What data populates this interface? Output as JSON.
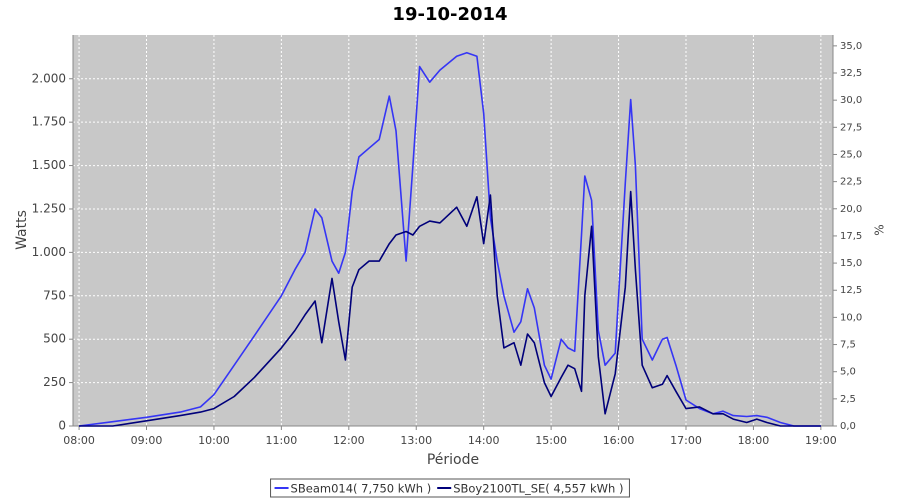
{
  "chart_data": {
    "type": "line",
    "title": "19-10-2014",
    "x_label": "Période",
    "y_label": "Watts",
    "y2_label": "%",
    "x": [
      8.0,
      8.5,
      9.0,
      9.5,
      9.8,
      10.0,
      10.3,
      10.6,
      11.0,
      11.2,
      11.35,
      11.5,
      11.6,
      11.75,
      11.85,
      11.95,
      12.05,
      12.15,
      12.3,
      12.45,
      12.6,
      12.7,
      12.85,
      12.95,
      13.05,
      13.2,
      13.35,
      13.6,
      13.75,
      13.9,
      14.0,
      14.1,
      14.2,
      14.3,
      14.45,
      14.55,
      14.65,
      14.75,
      14.9,
      15.0,
      15.15,
      15.25,
      15.35,
      15.45,
      15.5,
      15.6,
      15.7,
      15.8,
      15.95,
      16.1,
      16.18,
      16.25,
      16.35,
      16.5,
      16.65,
      16.72,
      16.85,
      17.0,
      17.2,
      17.4,
      17.55,
      17.7,
      17.9,
      18.05,
      18.2,
      18.4,
      18.6,
      19.0
    ],
    "series": [
      {
        "name": "SBeam014( 7,750 kWh )",
        "color": "#3535f5",
        "values": [
          0,
          25,
          50,
          80,
          110,
          180,
          350,
          520,
          750,
          900,
          1000,
          1250,
          1200,
          950,
          880,
          1000,
          1350,
          1550,
          1600,
          1650,
          1900,
          1700,
          950,
          1500,
          2070,
          1980,
          2050,
          2130,
          2150,
          2130,
          1800,
          1200,
          950,
          750,
          540,
          600,
          790,
          680,
          350,
          270,
          500,
          450,
          430,
          1100,
          1440,
          1300,
          550,
          350,
          420,
          1400,
          1880,
          1500,
          500,
          380,
          500,
          510,
          350,
          150,
          100,
          70,
          85,
          60,
          55,
          60,
          50,
          20,
          0,
          0
        ]
      },
      {
        "name": "SBoy2100TL_SE( 4,557 kWh )",
        "color": "#00007a",
        "values": [
          0,
          0,
          30,
          60,
          80,
          100,
          170,
          280,
          450,
          550,
          640,
          720,
          480,
          850,
          600,
          380,
          800,
          900,
          950,
          950,
          1050,
          1100,
          1120,
          1100,
          1150,
          1180,
          1170,
          1260,
          1150,
          1320,
          1050,
          1330,
          750,
          450,
          480,
          350,
          530,
          480,
          250,
          170,
          280,
          350,
          330,
          200,
          750,
          1150,
          400,
          70,
          300,
          800,
          1350,
          900,
          350,
          220,
          240,
          290,
          200,
          100,
          110,
          70,
          70,
          40,
          20,
          40,
          20,
          0,
          0,
          0
        ]
      }
    ],
    "xlim": [
      7.91,
      19.18
    ],
    "xticks": [
      {
        "value": 8,
        "label": "08:00"
      },
      {
        "value": 9,
        "label": "09:00"
      },
      {
        "value": 10,
        "label": "10:00"
      },
      {
        "value": 11,
        "label": "11:00"
      },
      {
        "value": 12,
        "label": "12:00"
      },
      {
        "value": 13,
        "label": "13:00"
      },
      {
        "value": 14,
        "label": "14:00"
      },
      {
        "value": 15,
        "label": "15:00"
      },
      {
        "value": 16,
        "label": "16:00"
      },
      {
        "value": 17,
        "label": "17:00"
      },
      {
        "value": 18,
        "label": "18:00"
      },
      {
        "value": 19,
        "label": "19:00"
      }
    ],
    "ylim": [
      0,
      2252
    ],
    "yticks": [
      0,
      250,
      500,
      750,
      {
        "value": 1000,
        "label": "1.000"
      },
      {
        "value": 1250,
        "label": "1.250"
      },
      {
        "value": 1500,
        "label": "1.500"
      },
      {
        "value": 1750,
        "label": "1.750"
      },
      {
        "value": 2000,
        "label": "2.000"
      }
    ],
    "y2lim": [
      0,
      36
    ],
    "y2ticks": [
      {
        "value": 0,
        "label": "0,0"
      },
      {
        "value": 2.5,
        "label": "2,5"
      },
      {
        "value": 5,
        "label": "5,0"
      },
      {
        "value": 7.5,
        "label": "7,5"
      },
      {
        "value": 10,
        "label": "10,0"
      },
      {
        "value": 12.5,
        "label": "12,5"
      },
      {
        "value": 15,
        "label": "15,0"
      },
      {
        "value": 17.5,
        "label": "17,5"
      },
      {
        "value": 20,
        "label": "20,0"
      },
      {
        "value": 22.5,
        "label": "22,5"
      },
      {
        "value": 25,
        "label": "25,0"
      },
      {
        "value": 27.5,
        "label": "27,5"
      },
      {
        "value": 30,
        "label": "30,0"
      },
      {
        "value": 32.5,
        "label": "32,5"
      },
      {
        "value": 35,
        "label": "35,0"
      }
    ],
    "grid": true,
    "plot_background": "#c8c8c8",
    "legend": "bottom"
  }
}
